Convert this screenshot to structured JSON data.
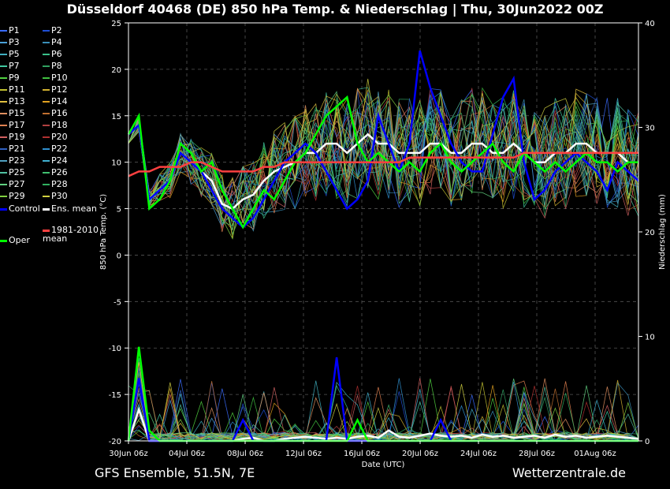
{
  "title": "Düsseldorf 40468 (DE)  850 hPa Temp. & Niederschlag | Thu, 30Jun2022 00Z",
  "footer_left": "GFS Ensemble, 51.5N, 7E",
  "footer_right": "Wetterzentrale.de",
  "chart_data": {
    "type": "line",
    "xlabel": "Date (UTC)",
    "ylabel": "850 hPa Temp. (°C)",
    "y2label": "Niederschlag (mm)",
    "ylim": [
      -20,
      25
    ],
    "y2lim": [
      0,
      40
    ],
    "yticks": [
      "25",
      "20",
      "15",
      "10",
      "5",
      "0",
      "-5",
      "-10",
      "-15",
      "-20"
    ],
    "y2ticks": [
      "40",
      "30",
      "20",
      "10",
      "0"
    ],
    "xticks": [
      "30Jun 06z",
      "04Jul 06z",
      "08Jul 06z",
      "12Jul 06z",
      "16Jul 06z",
      "20Jul 06z",
      "24Jul 06z",
      "28Jul 06z",
      "01Aug 06z"
    ],
    "grid": true,
    "legend_position": "left",
    "members": [
      {
        "name": "P1",
        "color": "#3a6cff"
      },
      {
        "name": "P2",
        "color": "#1f4fd6"
      },
      {
        "name": "P3",
        "color": "#4aa0d8"
      },
      {
        "name": "P4",
        "color": "#3a8fb8"
      },
      {
        "name": "P5",
        "color": "#40b0c0"
      },
      {
        "name": "P6",
        "color": "#3ac08a"
      },
      {
        "name": "P7",
        "color": "#40c8a0"
      },
      {
        "name": "P8",
        "color": "#30a060"
      },
      {
        "name": "P9",
        "color": "#50d040"
      },
      {
        "name": "P10",
        "color": "#40c040"
      },
      {
        "name": "P11",
        "color": "#c0c030"
      },
      {
        "name": "P12",
        "color": "#d0b030"
      },
      {
        "name": "P13",
        "color": "#e0c040"
      },
      {
        "name": "P14",
        "color": "#e0a020"
      },
      {
        "name": "P15",
        "color": "#e09060"
      },
      {
        "name": "P16",
        "color": "#c07030"
      },
      {
        "name": "P17",
        "color": "#e08050"
      },
      {
        "name": "P18",
        "color": "#b04040"
      },
      {
        "name": "P19",
        "color": "#d06060"
      },
      {
        "name": "P20",
        "color": "#b03030"
      },
      {
        "name": "P21",
        "color": "#3060c0"
      },
      {
        "name": "P22",
        "color": "#3090d0"
      },
      {
        "name": "P23",
        "color": "#50a0c0"
      },
      {
        "name": "P24",
        "color": "#40b0d0"
      },
      {
        "name": "P25",
        "color": "#50c0a0"
      },
      {
        "name": "P26",
        "color": "#40c070"
      },
      {
        "name": "P27",
        "color": "#60d080"
      },
      {
        "name": "P28",
        "color": "#30b060"
      },
      {
        "name": "P29",
        "color": "#80d040"
      },
      {
        "name": "P30",
        "color": "#d0d040"
      }
    ],
    "special": [
      {
        "name": "Control",
        "color": "#0000ff"
      },
      {
        "name": "Ens. mean",
        "color": "#ffffff"
      },
      {
        "name": "1981-2010 mean",
        "color": "#ff4040"
      },
      {
        "name": "Oper",
        "color": "#00ff00"
      }
    ],
    "series": [
      {
        "name": "Ens. mean",
        "axis": "temp",
        "values": [
          13,
          14,
          6,
          7,
          8,
          11,
          10,
          9,
          8,
          5.5,
          5,
          6,
          6.5,
          8,
          9,
          9.5,
          10,
          11,
          11,
          12,
          12,
          11,
          12,
          13,
          12,
          12,
          11,
          11,
          11,
          12,
          12,
          11,
          11,
          12,
          12,
          11,
          11,
          12,
          11,
          10,
          10,
          11,
          11,
          12,
          12,
          11,
          11,
          11,
          10,
          10
        ]
      },
      {
        "name": "Control",
        "axis": "temp",
        "values": [
          13,
          14,
          6,
          7,
          8,
          11,
          10,
          9,
          7,
          5,
          4,
          3,
          4,
          6,
          8,
          10,
          11,
          12,
          11,
          9,
          7,
          5,
          6,
          8,
          15,
          12,
          9,
          12,
          22,
          18,
          15,
          12,
          10,
          9,
          9,
          13,
          17,
          19,
          10,
          6,
          7,
          9,
          10,
          11,
          10,
          9,
          7,
          10,
          9,
          8
        ]
      },
      {
        "name": "Oper",
        "axis": "temp",
        "values": [
          13,
          15,
          5,
          6,
          8,
          12,
          11,
          9,
          10,
          7,
          5,
          3,
          5,
          7,
          6,
          8,
          10,
          11,
          13,
          15,
          16,
          17,
          12,
          10,
          11,
          10,
          9,
          10,
          9,
          11,
          12,
          10,
          9,
          10,
          11,
          12,
          10,
          9,
          11,
          10,
          9,
          10,
          9,
          10,
          11,
          10,
          10,
          9,
          10,
          10
        ]
      },
      {
        "name": "1981-2010 mean",
        "axis": "temp",
        "values": [
          8.5,
          9,
          9,
          9.5,
          9.5,
          9.5,
          10,
          10,
          9.5,
          9,
          9,
          9,
          9,
          9.5,
          9.5,
          10,
          10,
          10,
          10,
          10,
          10,
          10,
          10,
          10,
          10,
          10,
          10,
          10.5,
          10.5,
          10.5,
          10.5,
          10.5,
          10.5,
          10.5,
          10.5,
          10.5,
          10.5,
          10.5,
          11,
          11,
          11,
          11,
          11,
          11,
          11,
          11,
          11,
          11,
          11,
          11
        ]
      },
      {
        "name": "Ens. mean",
        "axis": "precip",
        "values": [
          0,
          3,
          0,
          0,
          0,
          0,
          0,
          0,
          0,
          0,
          0,
          0.2,
          0.3,
          0,
          0,
          0.2,
          0.3,
          0.4,
          0.3,
          0.2,
          0.3,
          0.2,
          0.4,
          0.5,
          0.3,
          1,
          0.4,
          0.3,
          0.5,
          0.7,
          0.5,
          0.4,
          0.5,
          0.3,
          0.6,
          0.4,
          0.5,
          0.3,
          0.4,
          0.5,
          0.3,
          0.6,
          0.4,
          0.5,
          0.3,
          0.4,
          0.5,
          0.4,
          0.3,
          0.2
        ]
      },
      {
        "name": "Control",
        "axis": "precip",
        "values": [
          0,
          6,
          0,
          0,
          0,
          0,
          0,
          0,
          0,
          0,
          0,
          2,
          0,
          0,
          0,
          0,
          0,
          0,
          0,
          0,
          8,
          0,
          0,
          0,
          0,
          0,
          0,
          0,
          0,
          0,
          2,
          0,
          0,
          0,
          0,
          0,
          0,
          0,
          0,
          0,
          0,
          0,
          0,
          0,
          0,
          0,
          0,
          0,
          0,
          0
        ]
      },
      {
        "name": "Oper",
        "axis": "precip",
        "values": [
          0,
          9,
          1,
          0,
          0,
          0,
          0,
          0,
          0,
          0,
          0,
          0,
          0,
          0,
          0,
          0,
          0,
          0,
          0,
          0,
          0,
          0,
          2,
          0,
          0,
          0,
          0,
          0,
          0,
          0,
          0,
          0,
          0,
          0,
          0,
          0,
          0,
          0,
          0,
          0,
          0,
          0,
          0,
          0,
          0,
          0,
          0,
          0,
          0,
          0
        ]
      }
    ]
  }
}
